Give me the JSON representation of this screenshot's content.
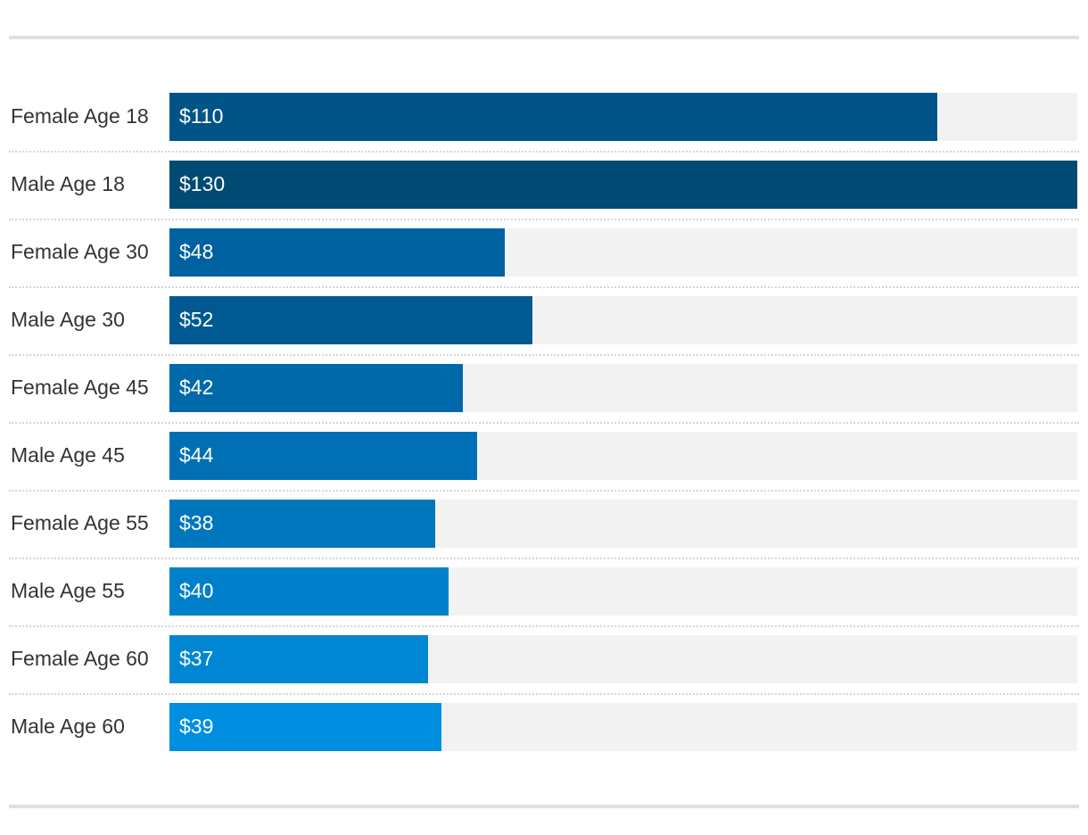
{
  "chart_data": {
    "type": "bar",
    "orientation": "horizontal",
    "title": "",
    "xlabel": "",
    "ylabel": "",
    "grid": false,
    "xlim": [
      0,
      130
    ],
    "categories": [
      "Female Age 18",
      "Male Age 18",
      "Female Age 30",
      "Male Age 30",
      "Female Age 45",
      "Male Age 45",
      "Female Age 55",
      "Male Age 55",
      "Female Age 60",
      "Male Age 60"
    ],
    "values": [
      110,
      130,
      48,
      52,
      42,
      44,
      38,
      40,
      37,
      39
    ],
    "value_labels": [
      "$110",
      "$130",
      "$48",
      "$52",
      "$42",
      "$44",
      "$38",
      "$40",
      "$37",
      "$39"
    ],
    "bar_colors": [
      "#005487",
      "#004a73",
      "#0061a0",
      "#005a91",
      "#0069aa",
      "#006fb3",
      "#0076bd",
      "#0080cb",
      "#0086d2",
      "#008ee0"
    ],
    "track_color": "#f2f2f2"
  }
}
